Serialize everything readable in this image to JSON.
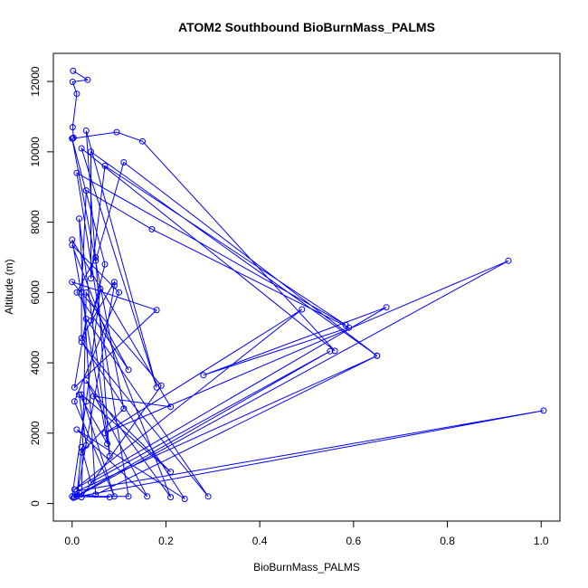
{
  "chart_data": {
    "type": "line",
    "title": "ATOM2 Southbound BioBurnMass_PALMS",
    "xlabel": "BioBurnMass_PALMS",
    "ylabel": "Altitude (m)",
    "xlim": [
      -0.04,
      1.04
    ],
    "ylim": [
      -500,
      12800
    ],
    "xticks": [
      0.0,
      0.2,
      0.4,
      0.6,
      0.8,
      1.0
    ],
    "yticks": [
      0,
      2000,
      4000,
      6000,
      8000,
      10000,
      12000
    ],
    "xtick_labels": [
      "0.0",
      "0.2",
      "0.4",
      "0.6",
      "0.8",
      "1.0"
    ],
    "ytick_labels": [
      "0",
      "2000",
      "4000",
      "6000",
      "8000",
      "10000",
      "12000"
    ],
    "grid": false,
    "marker": "open-circle",
    "series": [
      {
        "color": "#0000ff",
        "points": [
          [
            0.002,
            12300
          ],
          [
            0.033,
            12050
          ],
          [
            0.001,
            11990
          ],
          [
            0.01,
            11650
          ],
          [
            0.001,
            10700
          ],
          [
            0.003,
            10400
          ],
          [
            0.001,
            10380
          ],
          [
            0.095,
            10560
          ],
          [
            0.15,
            10300
          ],
          [
            0.56,
            4340
          ],
          [
            0.02,
            10100
          ],
          [
            0.18,
            3300
          ],
          [
            0.03,
            10600
          ],
          [
            0.05,
            6900
          ],
          [
            0.11,
            9700
          ],
          [
            0.65,
            4200
          ],
          [
            0.04,
            10000
          ],
          [
            0.04,
            6400
          ],
          [
            0.07,
            9600
          ],
          [
            0.583,
            5080
          ],
          [
            0.01,
            9400
          ],
          [
            0.12,
            200
          ],
          [
            0.01,
            200
          ],
          [
            0.93,
            6900
          ],
          [
            0.07,
            2000
          ],
          [
            0.49,
            5520
          ],
          [
            0.005,
            400
          ],
          [
            0.67,
            5580
          ],
          [
            0.28,
            3650
          ],
          [
            0.59,
            5000
          ],
          [
            0.17,
            7800
          ],
          [
            0.03,
            8900
          ],
          [
            0.02,
            6000
          ],
          [
            0.02,
            4700
          ],
          [
            0.09,
            6300
          ],
          [
            0.09,
            6200
          ],
          [
            0.01,
            200
          ],
          [
            0.02,
            1600
          ],
          [
            0.04,
            600
          ],
          [
            0.55,
            4330
          ],
          [
            0.005,
            180
          ],
          [
            1.005,
            2640
          ],
          [
            0.01,
            350
          ],
          [
            0.65,
            4200
          ],
          [
            0.05,
            250
          ],
          [
            0.015,
            8100
          ],
          [
            0.08,
            1350
          ],
          [
            0.05,
            7000
          ],
          [
            0.01,
            6000
          ],
          [
            0.12,
            3800
          ],
          [
            0.03,
            6000
          ],
          [
            0.02,
            180
          ],
          [
            0.19,
            3350
          ],
          [
            0.0,
            6300
          ],
          [
            0.18,
            5500
          ],
          [
            0.005,
            3300
          ],
          [
            0.03,
            5250
          ],
          [
            0.29,
            200
          ],
          [
            0.02,
            4600
          ],
          [
            0.24,
            130
          ],
          [
            0.01,
            2100
          ],
          [
            0.16,
            200
          ],
          [
            0.03,
            3500
          ],
          [
            0.21,
            180
          ],
          [
            0.0,
            7350
          ],
          [
            0.1,
            6000
          ],
          [
            0.005,
            2900
          ],
          [
            0.09,
            200
          ],
          [
            0.02,
            3100
          ],
          [
            0.21,
            900
          ],
          [
            0.045,
            3050
          ],
          [
            0.21,
            2750
          ],
          [
            0.0,
            7500
          ],
          [
            0.075,
            1700
          ],
          [
            0.015,
            3100
          ],
          [
            0.03,
            1650
          ],
          [
            0.02,
            1450
          ],
          [
            0.11,
            2700
          ],
          [
            0.0,
            10380
          ],
          [
            0.07,
            6800
          ],
          [
            0.04,
            5200
          ],
          [
            0.06,
            6100
          ],
          [
            0.03,
            2900
          ],
          [
            0.0,
            200
          ],
          [
            0.08,
            180
          ],
          [
            0.01,
            250
          ],
          [
            0.003,
            160
          ]
        ]
      }
    ]
  }
}
